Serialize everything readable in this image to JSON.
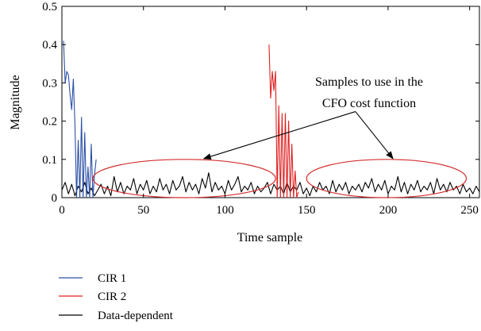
{
  "chart_data": {
    "type": "line",
    "xlabel": "Time sample",
    "ylabel": "Magnitude",
    "xlim": [
      0,
      256
    ],
    "ylim": [
      0,
      0.5
    ],
    "x_ticks": [
      0,
      50,
      100,
      150,
      200,
      250
    ],
    "y_ticks": [
      0,
      0.1,
      0.2,
      0.3,
      0.4,
      0.5
    ],
    "x_tick_labels": [
      "0",
      "50",
      "100",
      "150",
      "200",
      "250"
    ],
    "y_tick_labels": [
      "0",
      "0.1",
      "0.2",
      "0.3",
      "0.4",
      "0.5"
    ],
    "grid": false,
    "legend_position": "below",
    "annotation": {
      "lines": [
        "Samples to use in the",
        "CFO cost function"
      ],
      "regions": [
        {
          "x_center": 75,
          "y_center": 0.05,
          "x_halfwidth": 56,
          "y_halfwidth": 0.05
        },
        {
          "x_center": 199,
          "y_center": 0.05,
          "x_halfwidth": 49,
          "y_halfwidth": 0.05
        }
      ],
      "arrow_targets": [
        [
          87,
          0.102
        ],
        [
          203,
          0.102
        ]
      ],
      "arrow_origin": [
        180,
        0.225
      ],
      "color": "#d42f2f"
    },
    "series": [
      {
        "name": "CIR 1",
        "color": "#2b4fa6",
        "x": [
          1,
          2,
          3,
          4,
          5,
          6,
          7,
          8,
          9,
          10,
          11,
          12,
          13,
          14,
          15,
          16,
          17,
          18,
          19,
          20,
          21
        ],
        "y": [
          0.41,
          0.3,
          0.33,
          0.32,
          0.27,
          0.23,
          0.31,
          0.19,
          0.0,
          0.15,
          0.0,
          0.21,
          0.0,
          0.17,
          0.0,
          0.08,
          0.0,
          0.14,
          0.0,
          0.06,
          0.1
        ]
      },
      {
        "name": "CIR 2",
        "color": "#e02020",
        "x": [
          127,
          128,
          129,
          130,
          131,
          132,
          133,
          134,
          135,
          136,
          137,
          138,
          139,
          140,
          141,
          142,
          143,
          144,
          145
        ],
        "y": [
          0.4,
          0.26,
          0.33,
          0.28,
          0.33,
          0.0,
          0.24,
          0.0,
          0.22,
          0.0,
          0.22,
          0.0,
          0.2,
          0.0,
          0.14,
          0.0,
          0.07,
          0.0,
          0.015
        ]
      },
      {
        "name": "Data-dependent",
        "color": "#000000",
        "x": [
          0,
          2,
          4,
          6,
          8,
          10,
          12,
          14,
          16,
          18,
          20,
          22,
          24,
          26,
          28,
          30,
          32,
          34,
          36,
          38,
          40,
          42,
          44,
          46,
          48,
          50,
          52,
          54,
          56,
          58,
          60,
          62,
          64,
          66,
          68,
          70,
          72,
          74,
          76,
          78,
          80,
          82,
          84,
          86,
          88,
          90,
          92,
          94,
          96,
          98,
          100,
          102,
          104,
          106,
          108,
          110,
          112,
          114,
          116,
          118,
          120,
          122,
          124,
          126,
          128,
          130,
          132,
          134,
          136,
          138,
          140,
          142,
          144,
          146,
          148,
          150,
          152,
          154,
          156,
          158,
          160,
          162,
          164,
          166,
          168,
          170,
          172,
          174,
          176,
          178,
          180,
          182,
          184,
          186,
          188,
          190,
          192,
          194,
          196,
          198,
          200,
          202,
          204,
          206,
          208,
          210,
          212,
          214,
          216,
          218,
          220,
          222,
          224,
          226,
          228,
          230,
          232,
          234,
          236,
          238,
          240,
          242,
          244,
          246,
          248,
          250,
          252,
          254,
          256
        ],
        "y": [
          0.02,
          0.04,
          0.01,
          0.035,
          0.005,
          0.03,
          0.015,
          0.04,
          0.01,
          0.025,
          0.005,
          0.02,
          0.035,
          0.01,
          0.03,
          0.005,
          0.055,
          0.015,
          0.04,
          0.01,
          0.03,
          0.02,
          0.05,
          0.01,
          0.035,
          0.02,
          0.045,
          0.01,
          0.03,
          0.015,
          0.05,
          0.02,
          0.035,
          0.01,
          0.045,
          0.02,
          0.03,
          0.055,
          0.015,
          0.04,
          0.02,
          0.035,
          0.01,
          0.05,
          0.025,
          0.065,
          0.015,
          0.04,
          0.02,
          0.03,
          0.01,
          0.045,
          0.02,
          0.035,
          0.055,
          0.015,
          0.03,
          0.02,
          0.04,
          0.01,
          0.03,
          0.015,
          0.025,
          0.04,
          0.01,
          0.035,
          0.02,
          0.03,
          0.01,
          0.04,
          0.015,
          0.03,
          0.02,
          0.04,
          0.01,
          0.025,
          0.005,
          0.03,
          0.015,
          0.04,
          0.02,
          0.03,
          0.01,
          0.045,
          0.015,
          0.035,
          0.02,
          0.04,
          0.01,
          0.03,
          0.02,
          0.035,
          0.015,
          0.04,
          0.025,
          0.05,
          0.015,
          0.035,
          0.02,
          0.045,
          0.01,
          0.03,
          0.02,
          0.055,
          0.015,
          0.04,
          0.01,
          0.035,
          0.02,
          0.045,
          0.015,
          0.03,
          0.02,
          0.04,
          0.01,
          0.05,
          0.02,
          0.035,
          0.015,
          0.04,
          0.02,
          0.03,
          0.01,
          0.035,
          0.015,
          0.025,
          0.01,
          0.03,
          0.015
        ]
      }
    ]
  }
}
